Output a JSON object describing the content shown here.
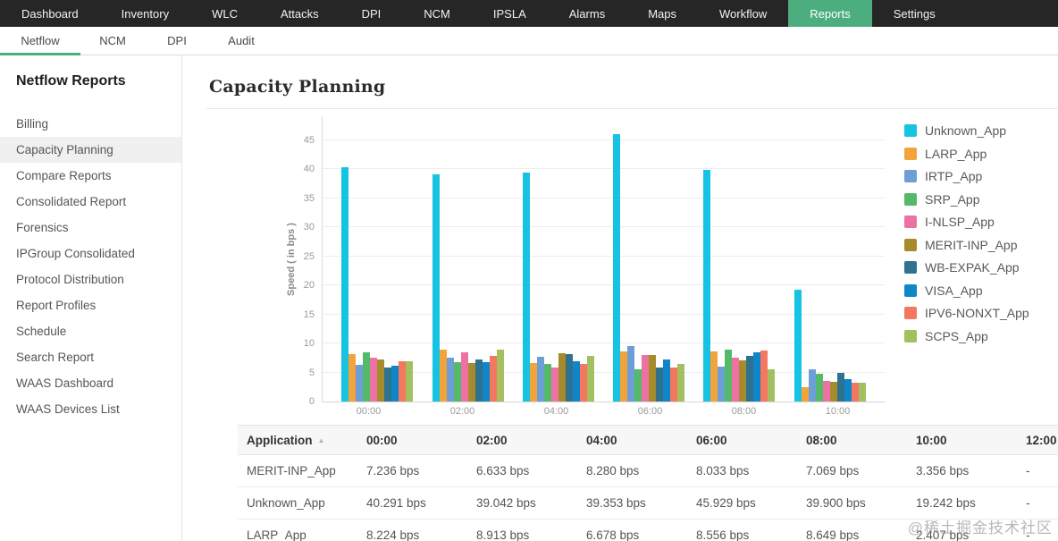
{
  "accent": "#4cae7e",
  "nav": {
    "items": [
      {
        "label": "Dashboard"
      },
      {
        "label": "Inventory"
      },
      {
        "label": "WLC"
      },
      {
        "label": "Attacks"
      },
      {
        "label": "DPI"
      },
      {
        "label": "NCM"
      },
      {
        "label": "IPSLA"
      },
      {
        "label": "Alarms"
      },
      {
        "label": "Maps"
      },
      {
        "label": "Workflow"
      },
      {
        "label": "Reports"
      },
      {
        "label": "Settings"
      }
    ],
    "active": "Reports"
  },
  "subnav": {
    "items": [
      {
        "label": "Netflow"
      },
      {
        "label": "NCM"
      },
      {
        "label": "DPI"
      },
      {
        "label": "Audit"
      }
    ],
    "active": "Netflow"
  },
  "sidebar": {
    "title": "Netflow Reports",
    "items": [
      {
        "label": "Billing"
      },
      {
        "label": "Capacity Planning"
      },
      {
        "label": "Compare Reports"
      },
      {
        "label": "Consolidated Report"
      },
      {
        "label": "Forensics"
      },
      {
        "label": "IPGroup Consolidated"
      },
      {
        "label": "Protocol Distribution"
      },
      {
        "label": "Report Profiles"
      },
      {
        "label": "Schedule"
      },
      {
        "label": "Search Report"
      },
      {
        "label": "WAAS Dashboard"
      },
      {
        "label": "WAAS Devices List"
      }
    ],
    "active": "Capacity Planning"
  },
  "main": {
    "title": "Capacity Planning"
  },
  "chart_data": {
    "type": "bar",
    "title": "Capacity Planning",
    "xlabel": "",
    "ylabel": "Speed ( in bps )",
    "categories": [
      "00:00",
      "02:00",
      "04:00",
      "06:00",
      "08:00",
      "10:00"
    ],
    "yticks": [
      0,
      5,
      10,
      15,
      20,
      25,
      30,
      35,
      40,
      45
    ],
    "ylim": [
      0,
      49
    ],
    "grid": true,
    "legend_position": "right",
    "series": [
      {
        "name": "Unknown_App",
        "color": "#17c3e2",
        "values": [
          40.291,
          39.042,
          39.353,
          45.929,
          39.9,
          19.242
        ]
      },
      {
        "name": "LARP_App",
        "color": "#f2a33a",
        "values": [
          8.224,
          8.913,
          6.678,
          8.556,
          8.649,
          2.407
        ]
      },
      {
        "name": "IRTP_App",
        "color": "#6d9fd6",
        "values": [
          6.3,
          7.6,
          7.7,
          9.5,
          6.0,
          5.5
        ]
      },
      {
        "name": "SRP_App",
        "color": "#55b96a",
        "values": [
          8.5,
          6.8,
          6.5,
          5.5,
          9.0,
          4.8
        ]
      },
      {
        "name": "I-NLSP_App",
        "color": "#ee71a4",
        "values": [
          7.5,
          8.4,
          5.9,
          8.0,
          7.5,
          3.5
        ]
      },
      {
        "name": "MERIT-INP_App",
        "color": "#a68b2c",
        "values": [
          7.236,
          6.633,
          8.28,
          8.033,
          7.069,
          3.356
        ]
      },
      {
        "name": "WB-EXPAK_App",
        "color": "#2e7290",
        "values": [
          5.9,
          7.3,
          8.2,
          5.8,
          7.8,
          5.0
        ]
      },
      {
        "name": "VISA_App",
        "color": "#0e86c8",
        "values": [
          6.2,
          6.7,
          7.0,
          7.2,
          8.5,
          3.8
        ]
      },
      {
        "name": "IPV6-NONXT_App",
        "color": "#f4785f",
        "values": [
          7.0,
          7.8,
          6.5,
          5.8,
          8.8,
          3.3
        ]
      },
      {
        "name": "SCPS_App",
        "color": "#a3bf5f",
        "values": [
          7.0,
          9.0,
          7.8,
          6.5,
          5.5,
          3.2
        ]
      }
    ]
  },
  "table": {
    "columns": [
      "Application",
      "00:00",
      "02:00",
      "04:00",
      "06:00",
      "08:00",
      "10:00",
      "12:00"
    ],
    "sort_column": "Application",
    "rows": [
      {
        "app": "MERIT-INP_App",
        "values": [
          "7.236 bps",
          "6.633 bps",
          "8.280 bps",
          "8.033 bps",
          "7.069 bps",
          "3.356 bps",
          "-"
        ]
      },
      {
        "app": "Unknown_App",
        "values": [
          "40.291 bps",
          "39.042 bps",
          "39.353 bps",
          "45.929 bps",
          "39.900 bps",
          "19.242 bps",
          "-"
        ]
      },
      {
        "app": "LARP_App",
        "values": [
          "8.224 bps",
          "8.913 bps",
          "6.678 bps",
          "8.556 bps",
          "8.649 bps",
          "2.407 bps",
          "-"
        ]
      }
    ]
  },
  "watermark": "@稀土掘金技术社区"
}
